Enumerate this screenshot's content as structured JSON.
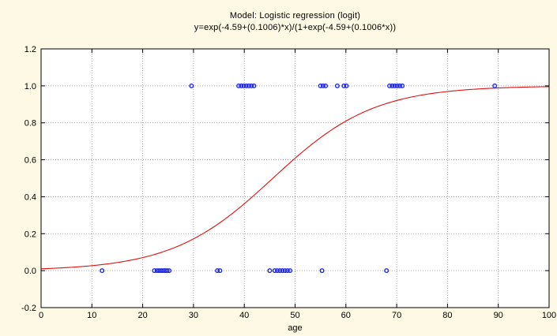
{
  "chart_data": {
    "type": "scatter",
    "title": "Model: Logistic regression (logit)",
    "subtitle": "y=exp(-4.59+(0.1006)*x)/(1+exp(-4.59+(0.1006*x))",
    "xlabel": "age",
    "ylabel": "",
    "xlim": [
      0,
      100
    ],
    "ylim": [
      -0.2,
      1.2
    ],
    "x_ticks": [
      "0",
      "10",
      "20",
      "30",
      "40",
      "50",
      "60",
      "70",
      "80",
      "90",
      "100"
    ],
    "y_ticks": [
      "-0.2",
      "0.0",
      "0.2",
      "0.4",
      "0.6",
      "0.8",
      "1.0",
      "1.2"
    ],
    "grid": "dotted",
    "model": {
      "intercept": -4.59,
      "slope": 0.1006
    },
    "series": [
      {
        "type": "scatter",
        "points": [
          [
            12,
            0
          ],
          [
            22.3,
            0
          ],
          [
            22.8,
            0
          ],
          [
            23.2,
            0
          ],
          [
            23.6,
            0
          ],
          [
            24.0,
            0
          ],
          [
            24.4,
            0
          ],
          [
            24.8,
            0
          ],
          [
            25.2,
            0
          ],
          [
            34.7,
            0
          ],
          [
            35.2,
            0
          ],
          [
            45,
            0
          ],
          [
            46,
            0
          ],
          [
            46.5,
            0
          ],
          [
            47,
            0
          ],
          [
            47.5,
            0
          ],
          [
            48,
            0
          ],
          [
            48.5,
            0
          ],
          [
            49,
            0
          ],
          [
            55.3,
            0
          ],
          [
            68,
            0
          ],
          [
            29.6,
            1
          ],
          [
            38.9,
            1
          ],
          [
            39.4,
            1
          ],
          [
            39.9,
            1
          ],
          [
            40.4,
            1
          ],
          [
            40.9,
            1
          ],
          [
            41.4,
            1
          ],
          [
            41.9,
            1
          ],
          [
            55.0,
            1
          ],
          [
            55.5,
            1
          ],
          [
            56.0,
            1
          ],
          [
            58.3,
            1
          ],
          [
            59.6,
            1
          ],
          [
            60.1,
            1
          ],
          [
            68.6,
            1
          ],
          [
            69.1,
            1
          ],
          [
            69.6,
            1
          ],
          [
            70.1,
            1
          ],
          [
            70.6,
            1
          ],
          [
            71.1,
            1
          ],
          [
            89.3,
            1
          ]
        ]
      },
      {
        "type": "line",
        "function": "logistic"
      }
    ],
    "colors": {
      "points": "#1e28e6",
      "curve": "#e01010",
      "background": "#fdf9e4",
      "plot_background": "#ffffff",
      "grid": "#8a8a8a",
      "axis": "#000000"
    }
  }
}
